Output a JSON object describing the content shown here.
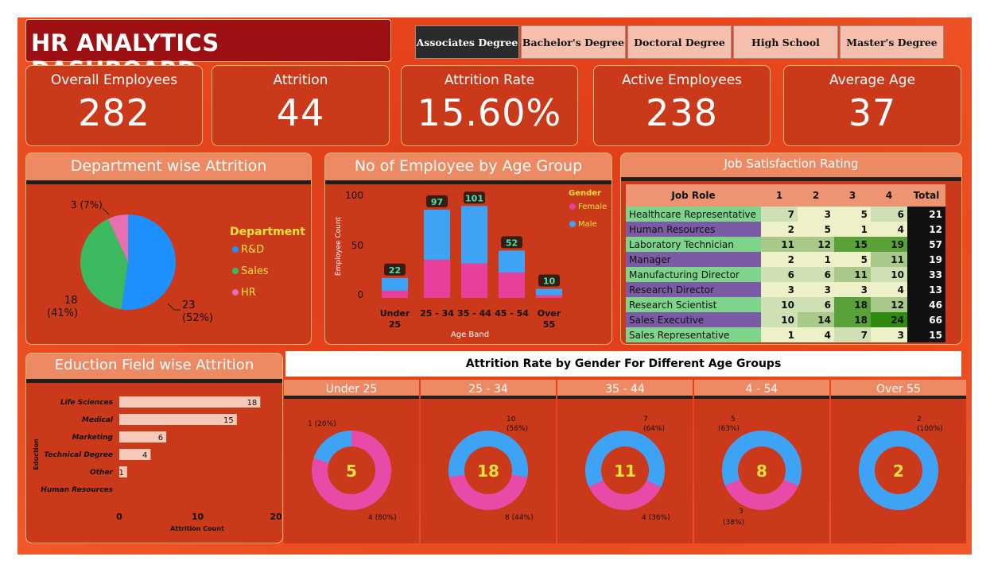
{
  "title": "HR ANALYTICS DASHBOARD",
  "slicers": [
    {
      "label": "Associates Degree",
      "active": true
    },
    {
      "label": "Bachelor's Degree",
      "active": false
    },
    {
      "label": "Doctoral Degree",
      "active": false
    },
    {
      "label": "High School",
      "active": false
    },
    {
      "label": "Master's Degree",
      "active": false
    }
  ],
  "kpis": [
    {
      "label": "Overall Employees",
      "value": "282"
    },
    {
      "label": "Attrition",
      "value": "44"
    },
    {
      "label": "Attrition Rate",
      "value": "15.60%"
    },
    {
      "label": "Active Employees",
      "value": "238"
    },
    {
      "label": "Average Age",
      "value": "37"
    }
  ],
  "dept": {
    "title": "Department wise Attrition",
    "legend_title": "Department",
    "legend": [
      {
        "name": "R&D",
        "color": "#1e90ff"
      },
      {
        "name": "Sales",
        "color": "#3cb95f"
      },
      {
        "name": "HR",
        "color": "#ea6fb0"
      }
    ],
    "labels": {
      "rd": [
        "23",
        "(52%)"
      ],
      "sales": [
        "18",
        "(41%)"
      ],
      "hr": "3 (7%)"
    }
  },
  "age": {
    "title": "No of Employee by Age Group",
    "legend_title": "Gender",
    "legend": [
      {
        "name": "Female",
        "color": "#e83e9c"
      },
      {
        "name": "Male",
        "color": "#3fa3f5"
      }
    ],
    "xlabel": "Age Band",
    "ylabel": "Employee Count",
    "yticks": [
      "100",
      "50",
      "0"
    ],
    "categories": [
      [
        "Under",
        "25"
      ],
      [
        "25 - 34",
        ""
      ],
      [
        "35 - 44",
        ""
      ],
      [
        "45 - 54",
        ""
      ],
      [
        "Over",
        "55"
      ]
    ],
    "totals": [
      "22",
      "97",
      "101",
      "52",
      "10"
    ]
  },
  "job": {
    "title": "Job Satisfaction Rating",
    "headers": [
      "Job Role",
      "1",
      "2",
      "3",
      "4",
      "Total"
    ],
    "rows": [
      {
        "role": "Healthcare Representative",
        "c": [
          "7",
          "3",
          "5",
          "6"
        ],
        "total": "21"
      },
      {
        "role": "Human Resources",
        "c": [
          "2",
          "5",
          "1",
          "4"
        ],
        "total": "12"
      },
      {
        "role": "Laboratory Technician",
        "c": [
          "11",
          "12",
          "15",
          "19"
        ],
        "total": "57"
      },
      {
        "role": "Manager",
        "c": [
          "2",
          "1",
          "5",
          "11"
        ],
        "total": "19"
      },
      {
        "role": "Manufacturing Director",
        "c": [
          "6",
          "6",
          "11",
          "10"
        ],
        "total": "33"
      },
      {
        "role": "Research Director",
        "c": [
          "3",
          "3",
          "3",
          "4"
        ],
        "total": "13"
      },
      {
        "role": "Research Scientist",
        "c": [
          "10",
          "6",
          "18",
          "12"
        ],
        "total": "46"
      },
      {
        "role": "Sales Executive",
        "c": [
          "10",
          "14",
          "18",
          "24"
        ],
        "total": "66"
      },
      {
        "role": "Sales Representative",
        "c": [
          "1",
          "4",
          "7",
          "3"
        ],
        "total": "15"
      }
    ]
  },
  "edu": {
    "title": "Eduction Field wise Attrition",
    "ylabel": "Eduction",
    "xlabel": "Attrition Count",
    "xticks": [
      "0",
      "10",
      "20"
    ],
    "fields": [
      "Life Sciences",
      "Medical",
      "Marketing",
      "Technical Degree",
      "Other",
      "Human Resources"
    ],
    "value_labels": [
      "18",
      "15",
      "6",
      "4",
      "1",
      ""
    ]
  },
  "gender_title": "Attrition Rate by Gender For Different Age Groups",
  "donuts": [
    {
      "title": "Under 25",
      "center": "5",
      "top_label": [
        "1 (20%)"
      ],
      "bottom_label": [
        "4 (80%)"
      ]
    },
    {
      "title": "25 - 34",
      "center": "18",
      "top_label": [
        "10",
        "(56%)"
      ],
      "bottom_label": [
        "8 (44%)"
      ]
    },
    {
      "title": "35 - 44",
      "center": "11",
      "top_label": [
        "7",
        "(64%)"
      ],
      "bottom_label": [
        "4 (36%)"
      ]
    },
    {
      "title": "4 - 54",
      "center": "8",
      "top_label": [
        "5",
        "(63%)"
      ],
      "bottom_label": [
        "3",
        "(38%)"
      ]
    },
    {
      "title": "Over 55",
      "center": "2",
      "top_label": [
        "2",
        "(100%)"
      ],
      "bottom_label": []
    }
  ],
  "chart_data": [
    {
      "type": "pie",
      "title": "Department wise Attrition",
      "legend_title": "Department",
      "categories": [
        "R&D",
        "Sales",
        "HR"
      ],
      "values": [
        23,
        18,
        3
      ],
      "percent": [
        52,
        41,
        7
      ],
      "legend": "right"
    },
    {
      "type": "bar",
      "title": "No of Employee by Age Group",
      "stacked": true,
      "categories": [
        "Under 25",
        "25 - 34",
        "35 - 44",
        "45 - 54",
        "Over 55"
      ],
      "series": [
        {
          "name": "Female",
          "values": [
            8,
            42,
            38,
            28,
            3
          ]
        },
        {
          "name": "Male",
          "values": [
            14,
            55,
            63,
            24,
            7
          ]
        }
      ],
      "totals": [
        22,
        97,
        101,
        52,
        10
      ],
      "xlabel": "Age Band",
      "ylabel": "Employee Count",
      "ylim": [
        0,
        110
      ],
      "legend": "top-right"
    },
    {
      "type": "table",
      "title": "Job Satisfaction Rating"
    },
    {
      "type": "bar",
      "orientation": "horizontal",
      "title": "Eduction Field wise Attrition",
      "categories": [
        "Life Sciences",
        "Medical",
        "Marketing",
        "Technical Degree",
        "Other",
        "Human Resources"
      ],
      "values": [
        18,
        15,
        6,
        4,
        1,
        0
      ],
      "xlabel": "Attrition Count",
      "ylabel": "Eduction",
      "xlim": [
        0,
        20
      ]
    },
    {
      "type": "pie",
      "title": "Attrition Rate by Gender For Different Age Groups",
      "groups": [
        {
          "group": "Under 25",
          "total": 5,
          "male": 1,
          "female": 4
        },
        {
          "group": "25 - 34",
          "total": 18,
          "male": 10,
          "female": 8
        },
        {
          "group": "35 - 44",
          "total": 11,
          "male": 7,
          "female": 4
        },
        {
          "group": "4 - 54",
          "total": 8,
          "male": 5,
          "female": 3
        },
        {
          "group": "Over 55",
          "total": 2,
          "male": 2,
          "female": 0
        }
      ]
    }
  ]
}
